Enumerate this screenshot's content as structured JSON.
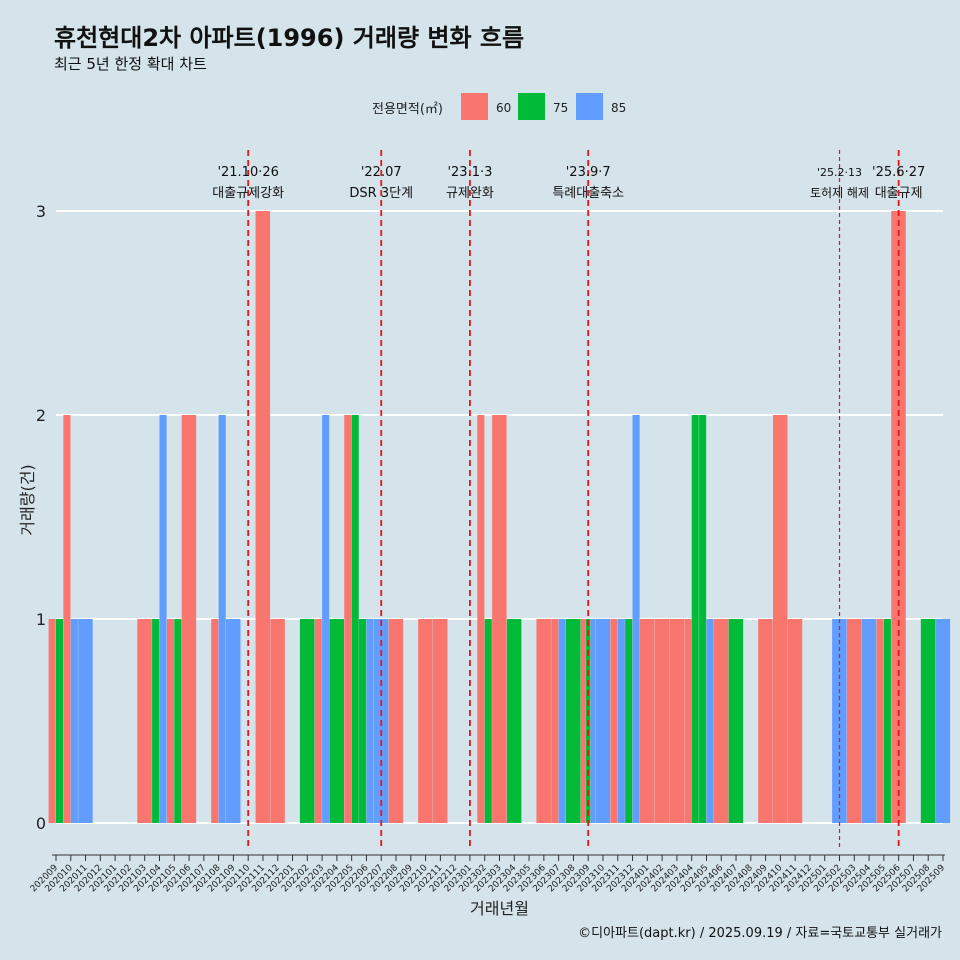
{
  "title": "휴천현대2차 아파트(1996) 거래량 변화 흐름",
  "subtitle": "최근 5년 한정 확대 차트",
  "caption": "©디아파트(dapt.kr) / 2025.09.19 / 자료=국토교통부 실거래가",
  "colors": {
    "background": "#d5e3ea",
    "grid": "#ffffff",
    "event_line": "#e8141a",
    "s60": "#f8766d",
    "s75": "#00ba38",
    "s85": "#619cff"
  },
  "chart_data": {
    "type": "bar",
    "xlabel": "거래년월",
    "ylabel": "거래량(건)",
    "ylim": [
      0,
      3
    ],
    "yticks": [
      0,
      1,
      2,
      3
    ],
    "legend": {
      "title": "전용면적(㎡)",
      "position": "top"
    },
    "categories": [
      "202009",
      "202010",
      "202011",
      "202012",
      "202101",
      "202102",
      "202103",
      "202104",
      "202105",
      "202106",
      "202107",
      "202108",
      "202109",
      "202110",
      "202111",
      "202112",
      "202201",
      "202202",
      "202203",
      "202204",
      "202205",
      "202206",
      "202207",
      "202208",
      "202209",
      "202210",
      "202211",
      "202212",
      "202301",
      "202302",
      "202303",
      "202304",
      "202305",
      "202306",
      "202307",
      "202308",
      "202309",
      "202310",
      "202311",
      "202312",
      "202401",
      "202402",
      "202403",
      "202404",
      "202405",
      "202406",
      "202407",
      "202408",
      "202409",
      "202410",
      "202411",
      "202412",
      "202501",
      "202502",
      "202503",
      "202504",
      "202505",
      "202506",
      "202507",
      "202508",
      "202509"
    ],
    "series": [
      {
        "name": "60",
        "values": [
          1,
          2,
          0,
          0,
          0,
          0,
          1,
          0,
          1,
          2,
          0,
          1,
          0,
          0,
          3,
          1,
          0,
          0,
          1,
          0,
          2,
          0,
          0,
          1,
          0,
          1,
          1,
          0,
          0,
          2,
          2,
          0,
          0,
          1,
          1,
          0,
          1,
          0,
          1,
          0,
          1,
          1,
          1,
          1,
          0,
          1,
          0,
          0,
          1,
          2,
          1,
          0,
          0,
          0,
          1,
          0,
          1,
          3,
          0,
          0,
          0
        ]
      },
      {
        "name": "75",
        "values": [
          1,
          0,
          0,
          0,
          0,
          0,
          0,
          1,
          1,
          0,
          0,
          0,
          0,
          0,
          0,
          0,
          0,
          1,
          0,
          1,
          2,
          1,
          0,
          0,
          0,
          0,
          0,
          0,
          0,
          1,
          0,
          1,
          0,
          0,
          0,
          1,
          1,
          0,
          0,
          1,
          0,
          0,
          0,
          2,
          2,
          0,
          1,
          0,
          0,
          0,
          0,
          0,
          0,
          0,
          0,
          0,
          1,
          0,
          0,
          1,
          0
        ]
      },
      {
        "name": "85",
        "values": [
          0,
          1,
          1,
          0,
          0,
          0,
          0,
          2,
          0,
          0,
          0,
          2,
          1,
          0,
          0,
          0,
          0,
          0,
          2,
          0,
          0,
          1,
          1,
          0,
          0,
          0,
          0,
          0,
          0,
          0,
          0,
          0,
          0,
          0,
          1,
          0,
          1,
          1,
          1,
          2,
          0,
          0,
          0,
          0,
          1,
          0,
          0,
          0,
          0,
          0,
          0,
          0,
          0,
          1,
          0,
          1,
          0,
          0,
          0,
          0,
          1
        ]
      }
    ],
    "events": [
      {
        "at": "202110",
        "date": "'21.10·26",
        "label": "대출규제강화",
        "style": "dashed"
      },
      {
        "at": "202207",
        "date": "'22.07",
        "label": "DSR 3단계",
        "style": "dashed"
      },
      {
        "at": "202301",
        "date": "'23.1·3",
        "label": "규제완화",
        "style": "dashed"
      },
      {
        "at": "202309",
        "date": "'23.9·7",
        "label": "특례대출축소",
        "style": "dashed"
      },
      {
        "at": "202502",
        "date": "'25.2·13",
        "label": "토허제 해제",
        "style": "fine"
      },
      {
        "at": "202506",
        "date": "'25.6·27",
        "label": "대출규제",
        "style": "dashed"
      }
    ]
  }
}
